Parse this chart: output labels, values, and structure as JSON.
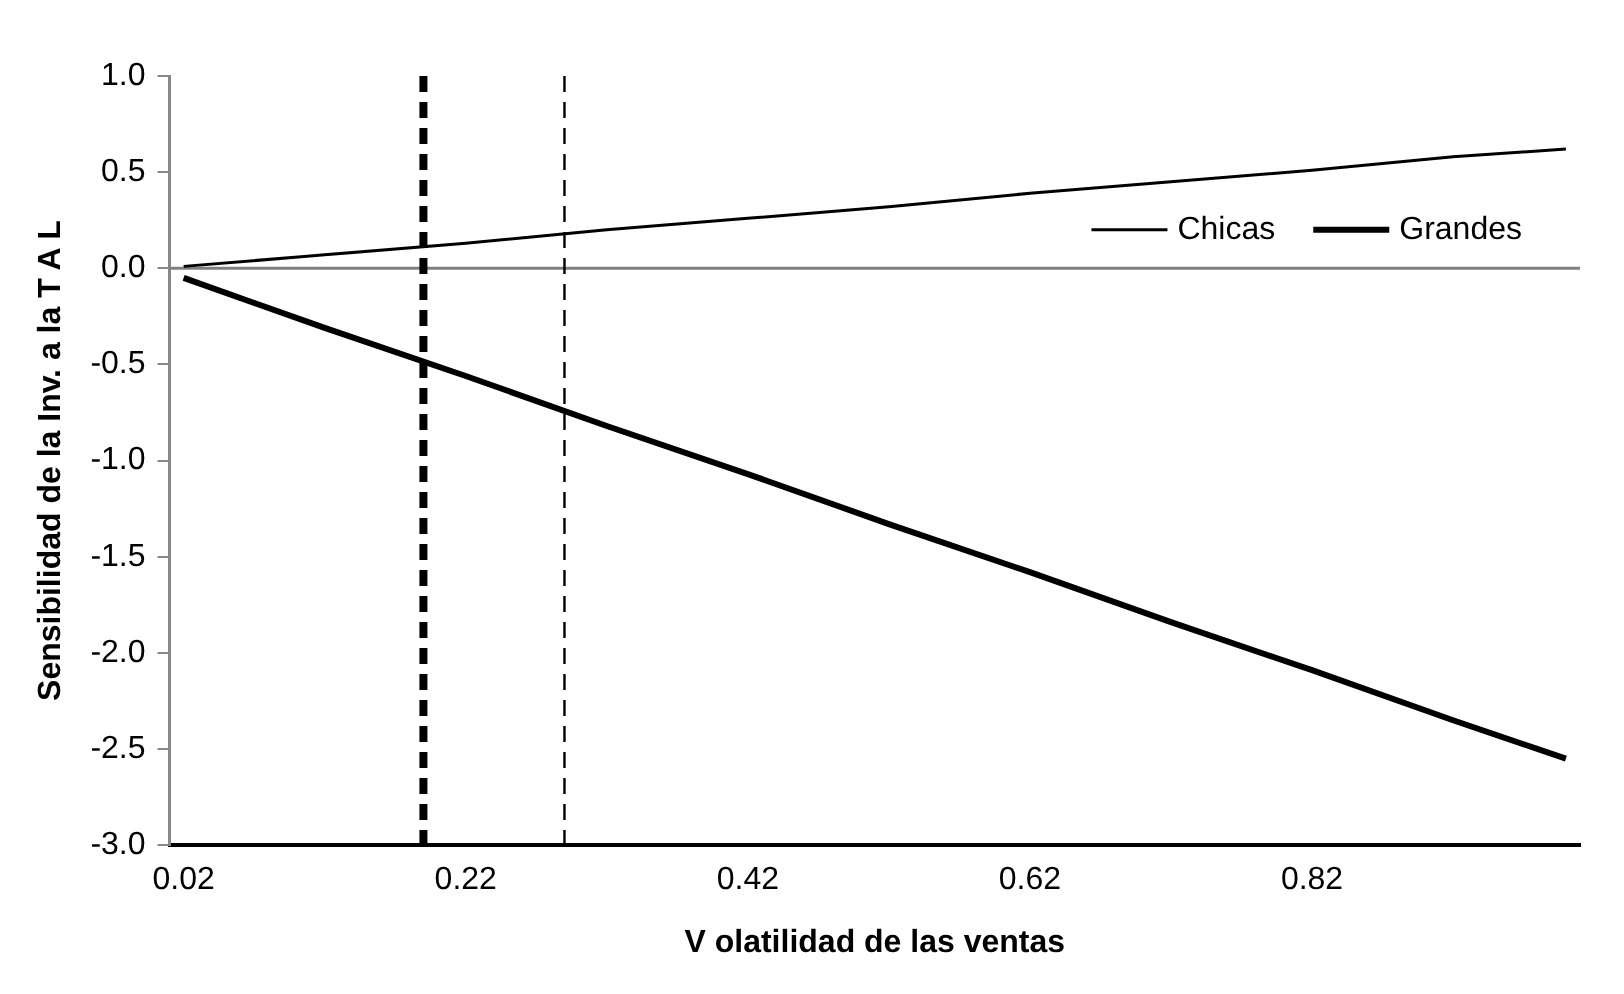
{
  "chart_data": {
    "type": "line",
    "xlabel": "V olatilidad de las ventas",
    "ylabel": "Sensibilidad de la Inv. a la T A L",
    "x": [
      0.02,
      0.12,
      0.22,
      0.32,
      0.42,
      0.52,
      0.62,
      0.72,
      0.82,
      0.92,
      1.0
    ],
    "series": [
      {
        "name": "Chicas",
        "color": "#000000",
        "values": [
          0.01,
          0.07,
          0.13,
          0.2,
          0.26,
          0.32,
          0.39,
          0.45,
          0.51,
          0.58,
          0.62
        ]
      },
      {
        "name": "Grandes",
        "color": "#000000",
        "values": [
          -0.05,
          -0.31,
          -0.56,
          -0.82,
          -1.07,
          -1.33,
          -1.58,
          -1.84,
          -2.09,
          -2.35,
          -2.55
        ]
      }
    ],
    "xlim": [
      0.01,
      1.01
    ],
    "xticks": [
      0.02,
      0.22,
      0.42,
      0.62,
      0.82
    ],
    "ylim": [
      -3.0,
      1.0
    ],
    "yticks": [
      {
        "value": -3,
        "label": "-3.0"
      },
      {
        "value": -2.5,
        "label": "-2.5"
      },
      {
        "value": -2,
        "label": "-2.0"
      },
      {
        "value": -1.5,
        "label": "-1.5"
      },
      {
        "value": -1,
        "label": "-1.0"
      },
      {
        "value": -0.5,
        "label": "-0.5"
      },
      {
        "value": 0,
        "label": "0.0"
      },
      {
        "value": 0.5,
        "label": "0.5"
      },
      {
        "value": 1,
        "label": "1.0"
      }
    ],
    "ref_lines": [
      {
        "axis": "y",
        "value": 0,
        "color": "#808080",
        "line_style": "solid"
      },
      {
        "axis": "x",
        "value": 0.19,
        "color": "#000000",
        "line_style": "dashed"
      },
      {
        "axis": "x",
        "value": 0.29,
        "color": "#000000",
        "line_style": "dashed"
      }
    ],
    "grid": false,
    "legend": "top right",
    "marker": "none",
    "line_style": "solid"
  }
}
